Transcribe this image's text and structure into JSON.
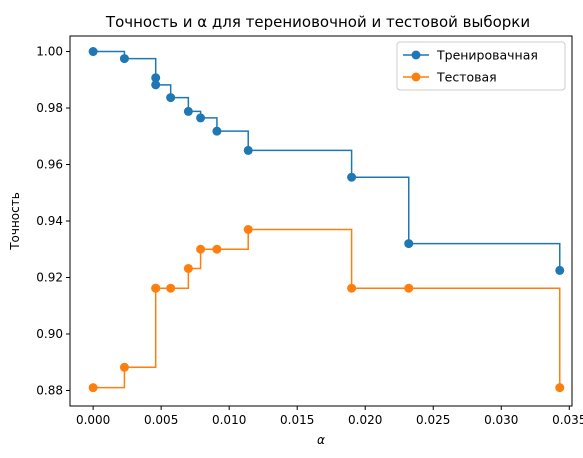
{
  "chart_data": {
    "type": "line",
    "step": "post",
    "title": "Точность и α для терениовочной и тестовой выборки",
    "xlabel": "α",
    "ylabel": "Точность",
    "xlim": [
      -0.0017,
      0.0352
    ],
    "ylim": [
      0.8745,
      1.0055
    ],
    "xticks": [
      0.0,
      0.005,
      0.01,
      0.015,
      0.02,
      0.025,
      0.03,
      0.035
    ],
    "xtick_labels": [
      "0.000",
      "0.005",
      "0.010",
      "0.015",
      "0.020",
      "0.025",
      "0.030",
      "0.035"
    ],
    "yticks": [
      0.88,
      0.9,
      0.92,
      0.94,
      0.96,
      0.98,
      1.0
    ],
    "ytick_labels": [
      "0.88",
      "0.90",
      "0.92",
      "0.94",
      "0.96",
      "0.98",
      "1.00"
    ],
    "grid": false,
    "legend_position": "top-right",
    "x": [
      0.0,
      0.0023,
      0.0046,
      0.0046,
      0.0057,
      0.007,
      0.0079,
      0.0091,
      0.0114,
      0.019,
      0.0232,
      0.0343
    ],
    "series": [
      {
        "name": "Тренировачная",
        "color": "#1f77b4",
        "values": [
          1.0,
          0.9975,
          0.9907,
          0.9882,
          0.9837,
          0.9788,
          0.9765,
          0.9718,
          0.965,
          0.9555,
          0.932,
          0.9225
        ]
      },
      {
        "name": "Тестовая",
        "color": "#ff7f0e",
        "values": [
          0.881,
          0.8882,
          0.9162,
          0.9162,
          0.9162,
          0.9232,
          0.93,
          0.93,
          0.937,
          0.9162,
          0.9162,
          0.881
        ]
      }
    ]
  }
}
